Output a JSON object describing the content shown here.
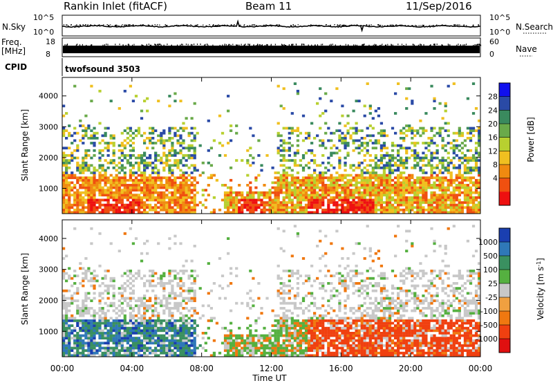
{
  "header": {
    "station": "Rankin Inlet (fitACF)",
    "beam": "Beam 11",
    "date": "11/Sep/2016"
  },
  "panels": {
    "nsky": {
      "label": "N.Sky",
      "right_label": "N.Search",
      "ticks_left": [
        "10^5",
        "10^0"
      ],
      "ticks_right": [
        "10^5",
        "10^0"
      ]
    },
    "freq": {
      "label_top": "Freq.",
      "label_bottom": "[MHz]",
      "right_label": "Nave",
      "ticks_left": [
        "18",
        "8"
      ],
      "ticks_right": [
        "60",
        "0"
      ]
    },
    "cpid": {
      "label": "CPID",
      "program": "twofsound 3503"
    }
  },
  "colors": {
    "power_scale": [
      "#1010ee",
      "#2a4aa6",
      "#3a8a5e",
      "#6aaa4a",
      "#b8d030",
      "#f0c020",
      "#f08a10",
      "#f05010",
      "#ee1010"
    ],
    "velocity_scale": [
      "#1a3fb0",
      "#2f78b8",
      "#3a9060",
      "#55b040",
      "#c8c8c8",
      "#f0a040",
      "#f07810",
      "#f04010",
      "#e01010"
    ]
  },
  "chart_data": [
    {
      "type": "heatmap",
      "name": "power",
      "ylabel": "Slant Range [km]",
      "xlabel": "",
      "x_ticks": [
        "00:00",
        "04:00",
        "08:00",
        "12:00",
        "16:00",
        "20:00",
        "00:00"
      ],
      "y_ticks": [
        1000,
        2000,
        3000,
        4000
      ],
      "ylim": [
        180,
        4600
      ],
      "xlim_hours": [
        0,
        24
      ],
      "colorbar": {
        "label": "Power [dB]",
        "ticks": [
          "28",
          "24",
          "20",
          "16",
          "12",
          "8",
          "4"
        ],
        "range": [
          0,
          32
        ]
      }
    },
    {
      "type": "heatmap",
      "name": "velocity",
      "ylabel": "Slant Range [km]",
      "xlabel": "Time UT",
      "x_ticks": [
        "00:00",
        "04:00",
        "08:00",
        "12:00",
        "16:00",
        "20:00",
        "00:00"
      ],
      "y_ticks": [
        1000,
        2000,
        3000,
        4000
      ],
      "ylim": [
        180,
        4600
      ],
      "xlim_hours": [
        0,
        24
      ],
      "colorbar": {
        "label": "Velocity [m s^-1]",
        "ticks": [
          "1000",
          "500",
          "100",
          "25",
          "-25",
          "-100",
          "-500",
          "-1000"
        ]
      }
    }
  ]
}
